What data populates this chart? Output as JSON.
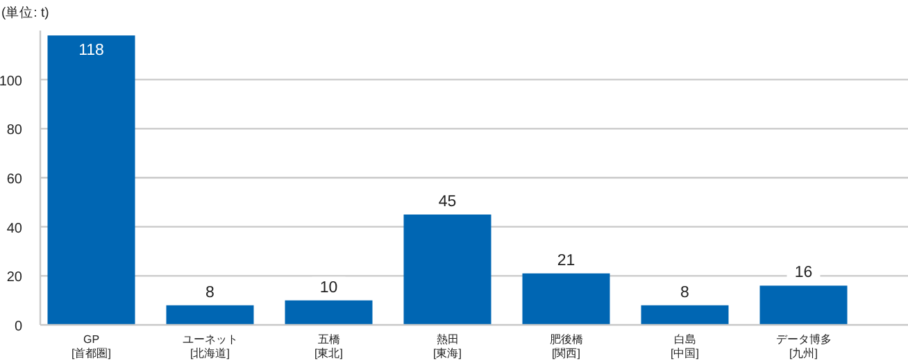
{
  "chart_data": {
    "type": "bar",
    "ylabel": "(単位: t)",
    "categories": [
      "GP\n[首都圏]",
      "ユーネット\n[北海道]",
      "五橋\n[東北]",
      "熱田\n[東海]",
      "肥後橋\n[関西]",
      "白島\n[中国]",
      "データ博多\n[九州]"
    ],
    "values": [
      118,
      8,
      10,
      45,
      21,
      8,
      16
    ],
    "data_labels": true,
    "color": "#0066b3",
    "ylim": [
      0,
      120
    ],
    "yticks": [
      0,
      20,
      40,
      60,
      80,
      100
    ],
    "grid": "y"
  }
}
